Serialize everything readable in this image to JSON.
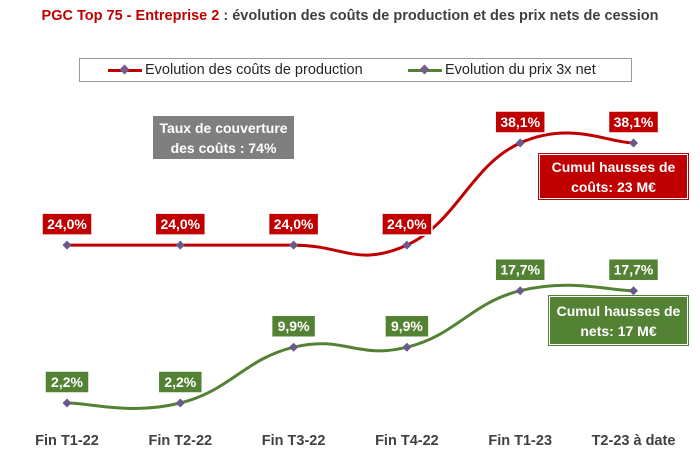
{
  "title": {
    "highlight": "PGC Top 75 - Entreprise 2",
    "rest": " : évolution des coûts de production et des prix nets de cession"
  },
  "colors": {
    "cost": "#c00000",
    "price": "#548235",
    "coverage_box": "#7f7f7f",
    "marker": "#6a5a8c"
  },
  "chart_data": {
    "type": "line",
    "categories": [
      "Fin T1-22",
      "Fin T2-22",
      "Fin T3-22",
      "Fin T4-22",
      "Fin T1-23",
      "T2-23 à date"
    ],
    "series": [
      {
        "name": "Evolution des coûts de production",
        "values": [
          24.0,
          24.0,
          24.0,
          24.0,
          38.1,
          38.1
        ],
        "labels": [
          "24,0%",
          "24,0%",
          "24,0%",
          "24,0%",
          "38,1%",
          "38,1%"
        ]
      },
      {
        "name": "Evolution du prix 3x net",
        "values": [
          2.2,
          2.2,
          9.9,
          9.9,
          17.7,
          17.7
        ],
        "labels": [
          "2,2%",
          "2,2%",
          "9,9%",
          "9,9%",
          "17,7%",
          "17,7%"
        ]
      }
    ],
    "ylim": [
      0,
      45
    ],
    "grid": false,
    "legend": "top"
  },
  "annotations": {
    "coverage": "Taux de couverture des coûts : 74%",
    "cost_cumul": "Cumul hausses de coûts: 23 M€",
    "price_cumul": "Cumul hausses de nets: 17 M€"
  }
}
